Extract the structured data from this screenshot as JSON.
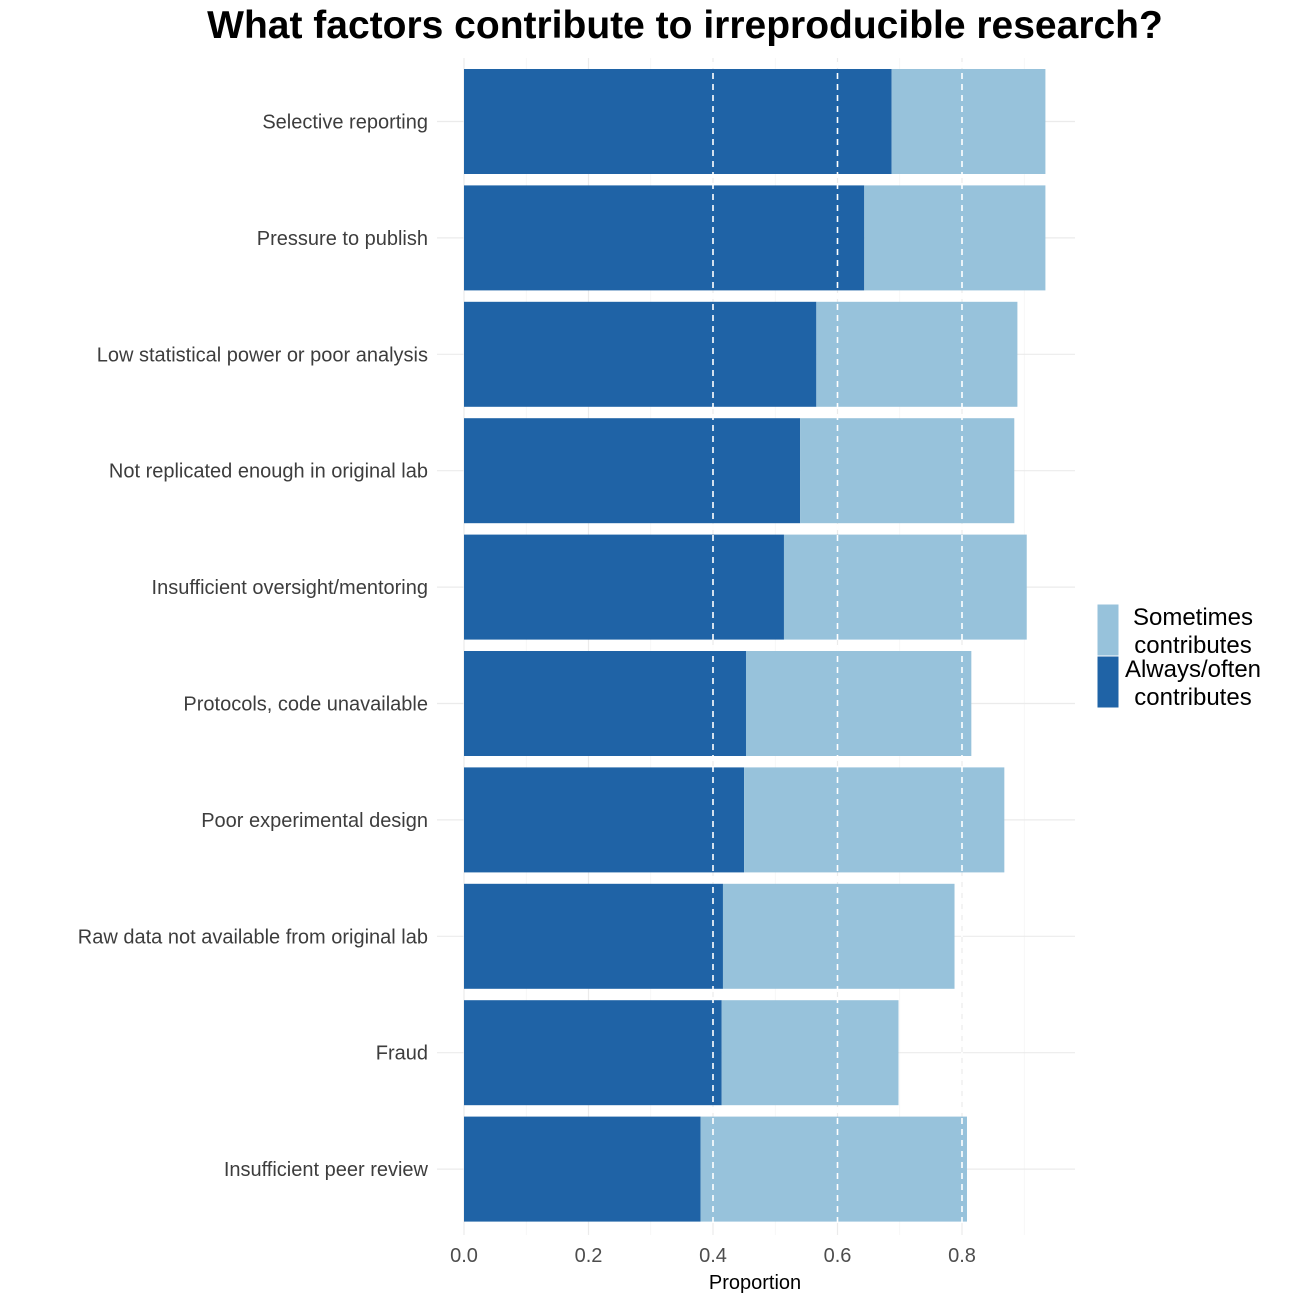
{
  "chart_data": {
    "type": "bar",
    "orientation": "horizontal",
    "stacked": true,
    "title": "What factors contribute to irreproducible research?",
    "xlabel": "Proportion",
    "ylabel": "",
    "xlim": [
      0,
      0.98
    ],
    "x_ticks": [
      0.0,
      0.2,
      0.4,
      0.6,
      0.8
    ],
    "x_tick_labels": [
      "0.0",
      "0.2",
      "0.4",
      "0.6",
      "0.8"
    ],
    "reference_lines": [
      0.4,
      0.6,
      0.8
    ],
    "grid": true,
    "legend_position": "right",
    "categories": [
      "Selective reporting",
      "Pressure to publish",
      "Low statistical power or poor analysis",
      "Not replicated enough in original lab",
      "Insufficient oversight/mentoring",
      "Protocols, code unavailable",
      "Poor experimental design",
      "Raw data not available from original lab",
      "Fraud",
      "Insufficient peer review"
    ],
    "series": [
      {
        "name": "Always/often contributes",
        "legend_lines": [
          "Always/often",
          "contributes"
        ],
        "color": "#1f63a6",
        "values": [
          0.687,
          0.643,
          0.566,
          0.54,
          0.514,
          0.453,
          0.45,
          0.416,
          0.414,
          0.38
        ]
      },
      {
        "name": "Sometimes contributes",
        "legend_lines": [
          "Sometimes",
          "contributes"
        ],
        "color": "#97c2db",
        "values": [
          0.247,
          0.291,
          0.323,
          0.344,
          0.39,
          0.362,
          0.418,
          0.372,
          0.284,
          0.428
        ]
      }
    ],
    "legend_order": [
      1,
      0
    ]
  }
}
